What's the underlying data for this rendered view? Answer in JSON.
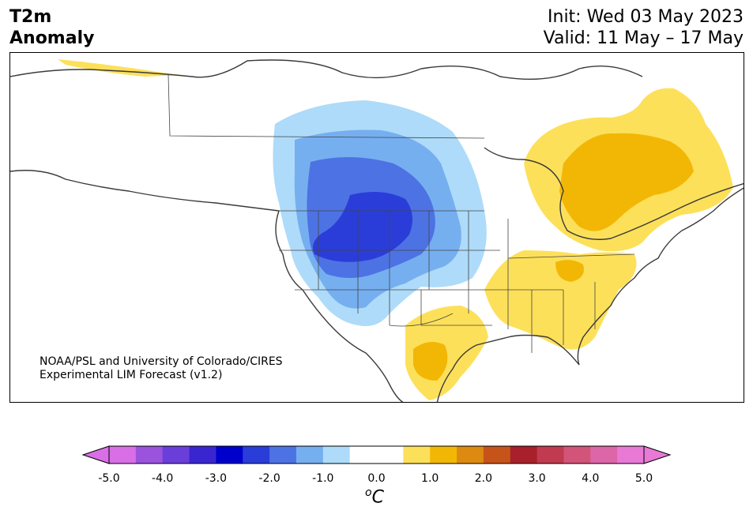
{
  "header": {
    "variable": "T2m",
    "quantity": "Anomaly",
    "init": "Init: Wed 03 May 2023",
    "valid": "Valid: 11 May – 17 May"
  },
  "credit": {
    "line1": "NOAA/PSL and University of Colorado/CIRES",
    "line2": "Experimental LIM Forecast (v1.2)"
  },
  "colorbar": {
    "ticks": [
      "-5.0",
      "-4.0",
      "-3.0",
      "-2.0",
      "-1.0",
      "0.0",
      "1.0",
      "2.0",
      "3.0",
      "4.0",
      "5.0"
    ],
    "unit_super": "o",
    "unit": "C",
    "colors": [
      "#d86fe6",
      "#9b52dd",
      "#6a3ed9",
      "#3a26d0",
      "#0000cc",
      "#2a3dd9",
      "#4d72e3",
      "#76aff0",
      "#aedbf9",
      "#ffffff",
      "#ffffff",
      "#fde05a",
      "#f2b705",
      "#dd8a10",
      "#c6541a",
      "#a8202a",
      "#c03a50",
      "#d25478",
      "#dd66a8",
      "#e87ad6"
    ]
  },
  "map": {
    "region": "North America",
    "features": [
      "cold anomaly west-central US/Canada",
      "warm anomaly eastern Canada",
      "warm anomaly southeast US",
      "warm anomaly Texas/Mexico"
    ]
  }
}
